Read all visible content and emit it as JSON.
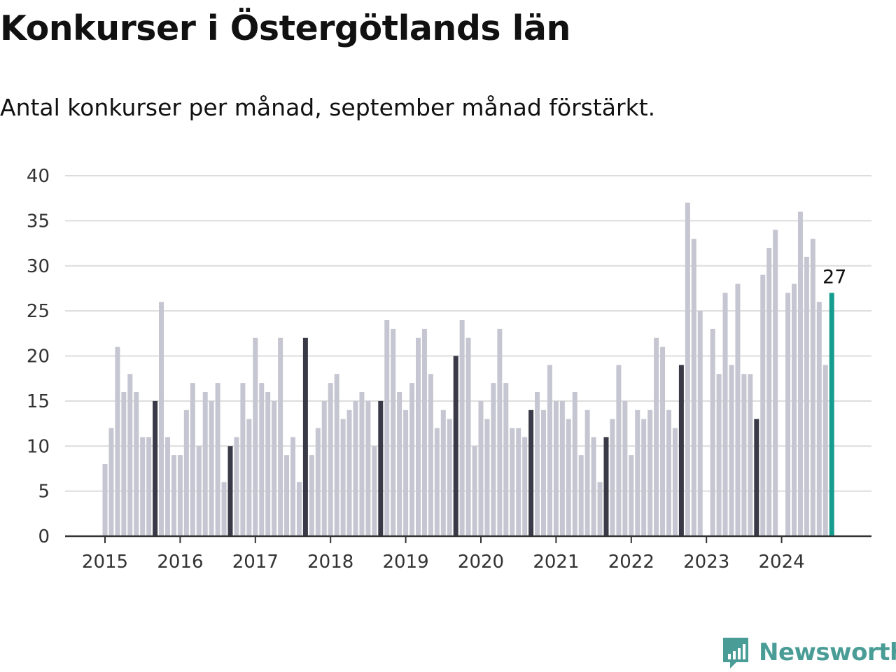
{
  "colors": {
    "regular": "#c6c6d2",
    "september": "#3a3947",
    "latest": "#169c8f",
    "grid": "#dcdcdc",
    "axis": "#333333",
    "brand": "#4a9d96"
  },
  "chart_data": {
    "type": "bar",
    "title": "Konkurser i Östergötlands län",
    "subtitle": "Antal konkurser per månad, september månad förstärkt.",
    "xlabel": "",
    "ylabel": "",
    "ylim": [
      0,
      40
    ],
    "yticks": [
      "0",
      "5",
      "10",
      "15",
      "20",
      "25",
      "30",
      "35",
      "40"
    ],
    "xticks": [
      "2015",
      "2016",
      "2017",
      "2018",
      "2019",
      "2020",
      "2021",
      "2022",
      "2023",
      "2024"
    ],
    "grid": true,
    "highlight_label": "27",
    "start": "2015-01",
    "september_index": 8,
    "values": [
      8,
      12,
      21,
      16,
      18,
      16,
      11,
      11,
      15,
      26,
      11,
      9,
      9,
      14,
      17,
      10,
      16,
      15,
      17,
      6,
      10,
      11,
      17,
      13,
      22,
      17,
      16,
      15,
      22,
      9,
      11,
      6,
      22,
      9,
      12,
      15,
      17,
      18,
      13,
      14,
      15,
      16,
      15,
      10,
      15,
      24,
      23,
      16,
      14,
      17,
      22,
      23,
      18,
      12,
      14,
      13,
      20,
      24,
      22,
      10,
      15,
      13,
      17,
      23,
      17,
      12,
      12,
      11,
      14,
      16,
      14,
      19,
      15,
      15,
      13,
      16,
      9,
      14,
      11,
      6,
      11,
      13,
      19,
      15,
      9,
      14,
      13,
      14,
      22,
      21,
      14,
      12,
      19,
      37,
      33,
      25,
      null,
      23,
      18,
      27,
      19,
      28,
      18,
      18,
      13,
      29,
      32,
      34,
      null,
      27,
      28,
      36,
      31,
      33,
      26,
      19,
      27
    ]
  },
  "branding": {
    "name": "Newsworthy",
    "icon": "bar-chart-speech-bubble-icon"
  }
}
